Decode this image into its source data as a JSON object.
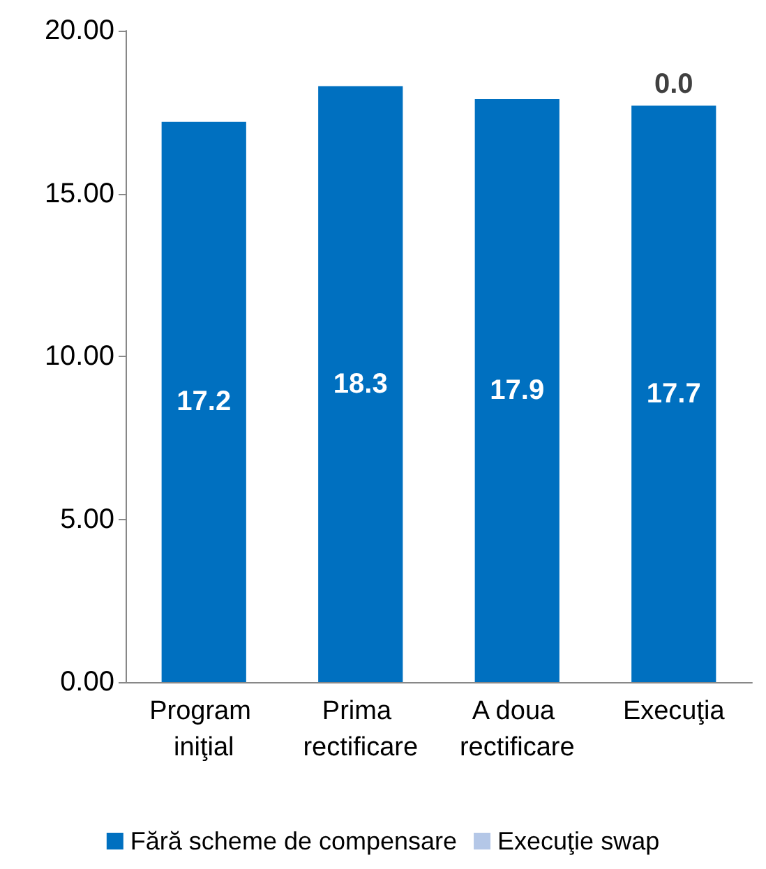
{
  "chart_data": {
    "type": "bar",
    "stacked": true,
    "categories": [
      "Program iniţial",
      "Prima rectificare",
      "A doua rectificare",
      "Execuţia"
    ],
    "series": [
      {
        "name": "Fără scheme de compensare",
        "color": "#0070c0",
        "values": [
          17.2,
          18.3,
          17.9,
          17.7
        ],
        "value_labels": [
          "17.2",
          "18.3",
          "17.9",
          "17.7"
        ]
      },
      {
        "name": "Execuţie swap",
        "color": "#b4c7e7",
        "values": [
          null,
          null,
          null,
          0
        ],
        "value_labels": [
          null,
          null,
          null,
          "0.0"
        ]
      }
    ],
    "ylim": [
      0,
      20
    ],
    "yticks": [
      {
        "value": 0,
        "label": "0.00"
      },
      {
        "value": 5,
        "label": "5.00"
      },
      {
        "value": 10,
        "label": "10.00"
      },
      {
        "value": 15,
        "label": "15.00"
      },
      {
        "value": 20,
        "label": "20.00"
      }
    ],
    "grid": false,
    "legend": "bottom"
  }
}
